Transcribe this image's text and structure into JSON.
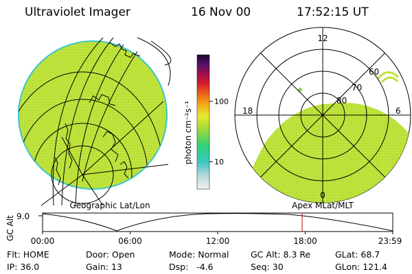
{
  "header": {
    "instrument": "Ultraviolet Imager",
    "date": "16 Nov 00",
    "time": "17:52:15 UT"
  },
  "colorbar": {
    "unit_label": "photon cm⁻²s⁻¹",
    "ticks": [
      {
        "label": "100",
        "value": 100
      },
      {
        "label": "10",
        "value": 10
      }
    ]
  },
  "geo_panel": {
    "label": "Geographic Lat/Lon"
  },
  "polar_panel": {
    "label": "Apex MLat/MLT",
    "mlt_labels": [
      {
        "label": "12",
        "mlt": 12
      },
      {
        "label": "18",
        "mlt": 18
      },
      {
        "label": "6",
        "mlt": 6
      },
      {
        "label": "0",
        "mlt": 0
      }
    ],
    "lat_labels": [
      {
        "label": "60",
        "lat": 60
      },
      {
        "label": "70",
        "lat": 70
      },
      {
        "label": "80",
        "lat": 80
      }
    ]
  },
  "altitude_plot": {
    "ylabel": "GC Alt",
    "y_tick": "9.0",
    "x_ticks": [
      {
        "label": "00:00",
        "hour": 0
      },
      {
        "label": "06:00",
        "hour": 6
      },
      {
        "label": "12:00",
        "hour": 12
      },
      {
        "label": "18:00",
        "hour": 18
      },
      {
        "label": "23:59",
        "hour": 23.983
      }
    ],
    "current_hour": 17.871
  },
  "footer": {
    "row1": [
      {
        "label": "Flt:",
        "value": "HOME"
      },
      {
        "label": "Door:",
        "value": "Open"
      },
      {
        "label": "Mode:",
        "value": "Normal"
      },
      {
        "label": "GC Alt:",
        "value": "8.3 Re"
      },
      {
        "label": "GLat:",
        "value": "68.7"
      }
    ],
    "row2": [
      {
        "label": "IP:",
        "value": "36.0"
      },
      {
        "label": "Gain:",
        "value": "13"
      },
      {
        "label": "Dsp:",
        "value": "-4.6"
      },
      {
        "label": "Seq:",
        "value": "30"
      },
      {
        "label": "GLon:",
        "value": "121.4"
      }
    ]
  },
  "colors": {
    "auroral_fill": "#bfe23a",
    "disk_edge": "#3bc7c7",
    "marker": "#cc0000"
  }
}
